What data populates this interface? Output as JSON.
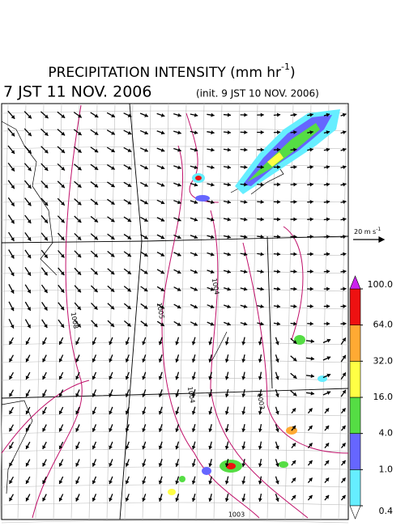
{
  "header": {
    "title": "PRECIPITATION INTENSITY (mm hr",
    "title_sup": "-1",
    "title_end": ")",
    "valid_time": "7 JST 11 NOV. 2006",
    "init_time": "(init. 9 JST 10 NOV. 2006)"
  },
  "wind_scale": {
    "label": "20 m s",
    "label_sup": "-1"
  },
  "isobar_labels": [
    "1008",
    "1005",
    "1004",
    "1004",
    "1003",
    "1003"
  ],
  "colorbar": {
    "levels": [
      {
        "value": 0.4,
        "label": "0.4"
      },
      {
        "value": 1,
        "label": "1.0"
      },
      {
        "value": 4,
        "label": "4.0"
      },
      {
        "value": 16,
        "label": "16.0"
      },
      {
        "value": 32,
        "label": "32.0"
      },
      {
        "value": 64,
        "label": "64.0"
      },
      {
        "value": 100,
        "label": "100.0"
      }
    ],
    "colors": [
      "#66eeff",
      "#6666ff",
      "#55dd44",
      "#ffff44",
      "#ffaa33",
      "#ee1111"
    ],
    "over_color": "#cc22ee",
    "under_color": "#ffffff"
  }
}
